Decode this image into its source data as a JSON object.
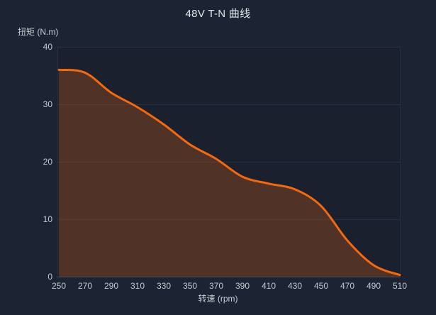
{
  "title": "48V T-N 曲线",
  "colors": {
    "background": "#1c2433",
    "plot_background": "#1a202e",
    "line": "#f2690f",
    "area_fill": "rgba(242,105,15,0.25)",
    "gridline": "#262e3f",
    "axis_line": "#3f4756",
    "tick_text": "#c3c8cf",
    "title_text": "#e2e5ea"
  },
  "chart_data": {
    "type": "area",
    "title": "48V T-N 曲线",
    "xlabel": "转速 (rpm)",
    "ylabel": "扭矩 (N.m)",
    "x": [
      250,
      270,
      290,
      310,
      330,
      350,
      370,
      390,
      410,
      430,
      450,
      470,
      490,
      510
    ],
    "values": [
      36,
      35.5,
      32,
      29.5,
      26.5,
      23,
      20.5,
      17.4,
      16.2,
      15.2,
      12.3,
      6.3,
      2,
      0.3
    ],
    "series_name": "T-N",
    "xlim": [
      250,
      510
    ],
    "ylim": [
      0,
      40
    ],
    "yticks": [
      0,
      10,
      20,
      30,
      40
    ],
    "xticks": [
      250,
      270,
      290,
      310,
      330,
      350,
      370,
      390,
      410,
      430,
      450,
      470,
      490,
      510
    ],
    "grid": true,
    "smooth": true,
    "legend": null
  }
}
